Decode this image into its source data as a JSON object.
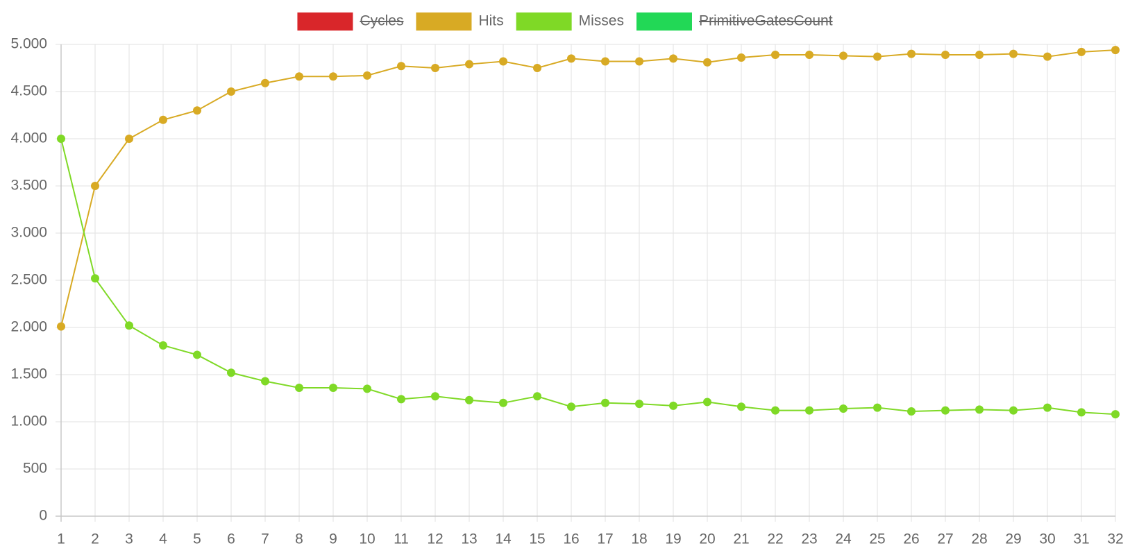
{
  "chart_data": {
    "type": "line",
    "categories": [
      "1",
      "2",
      "3",
      "4",
      "5",
      "6",
      "7",
      "8",
      "9",
      "10",
      "11",
      "12",
      "13",
      "14",
      "15",
      "16",
      "17",
      "18",
      "19",
      "20",
      "21",
      "22",
      "23",
      "24",
      "25",
      "26",
      "27",
      "28",
      "29",
      "30",
      "31",
      "32"
    ],
    "series": [
      {
        "name": "Cycles",
        "color": "#d9262a",
        "hidden": true
      },
      {
        "name": "Hits",
        "color": "#d8aa24",
        "values": [
          2010,
          3500,
          4000,
          4200,
          4300,
          4500,
          4590,
          4660,
          4660,
          4670,
          4770,
          4750,
          4790,
          4820,
          4750,
          4850,
          4820,
          4820,
          4850,
          4810,
          4860,
          4890,
          4890,
          4880,
          4870,
          4900,
          4890,
          4890,
          4900,
          4870,
          4920,
          4940
        ]
      },
      {
        "name": "Misses",
        "color": "#7fd926",
        "values": [
          4000,
          2520,
          2020,
          1810,
          1710,
          1520,
          1430,
          1360,
          1360,
          1350,
          1240,
          1270,
          1230,
          1200,
          1270,
          1160,
          1200,
          1190,
          1170,
          1210,
          1160,
          1120,
          1120,
          1140,
          1150,
          1110,
          1120,
          1130,
          1120,
          1150,
          1100,
          1080
        ]
      },
      {
        "name": "PrimitiveGatesCount",
        "color": "#22d856",
        "hidden": true
      }
    ],
    "ylim": [
      0,
      5000
    ],
    "yticks": [
      0,
      500,
      {
        "value": 1000,
        "label": "1.000"
      },
      {
        "value": 1500,
        "label": "1.500"
      },
      {
        "value": 2000,
        "label": "2.000"
      },
      {
        "value": 2500,
        "label": "2.500"
      },
      {
        "value": 3000,
        "label": "3.000"
      },
      {
        "value": 3500,
        "label": "3.500"
      },
      {
        "value": 4000,
        "label": "4.000"
      },
      {
        "value": 4500,
        "label": "4.500"
      },
      {
        "value": 5000,
        "label": "5.000"
      }
    ],
    "grid": true,
    "legend": "top"
  }
}
